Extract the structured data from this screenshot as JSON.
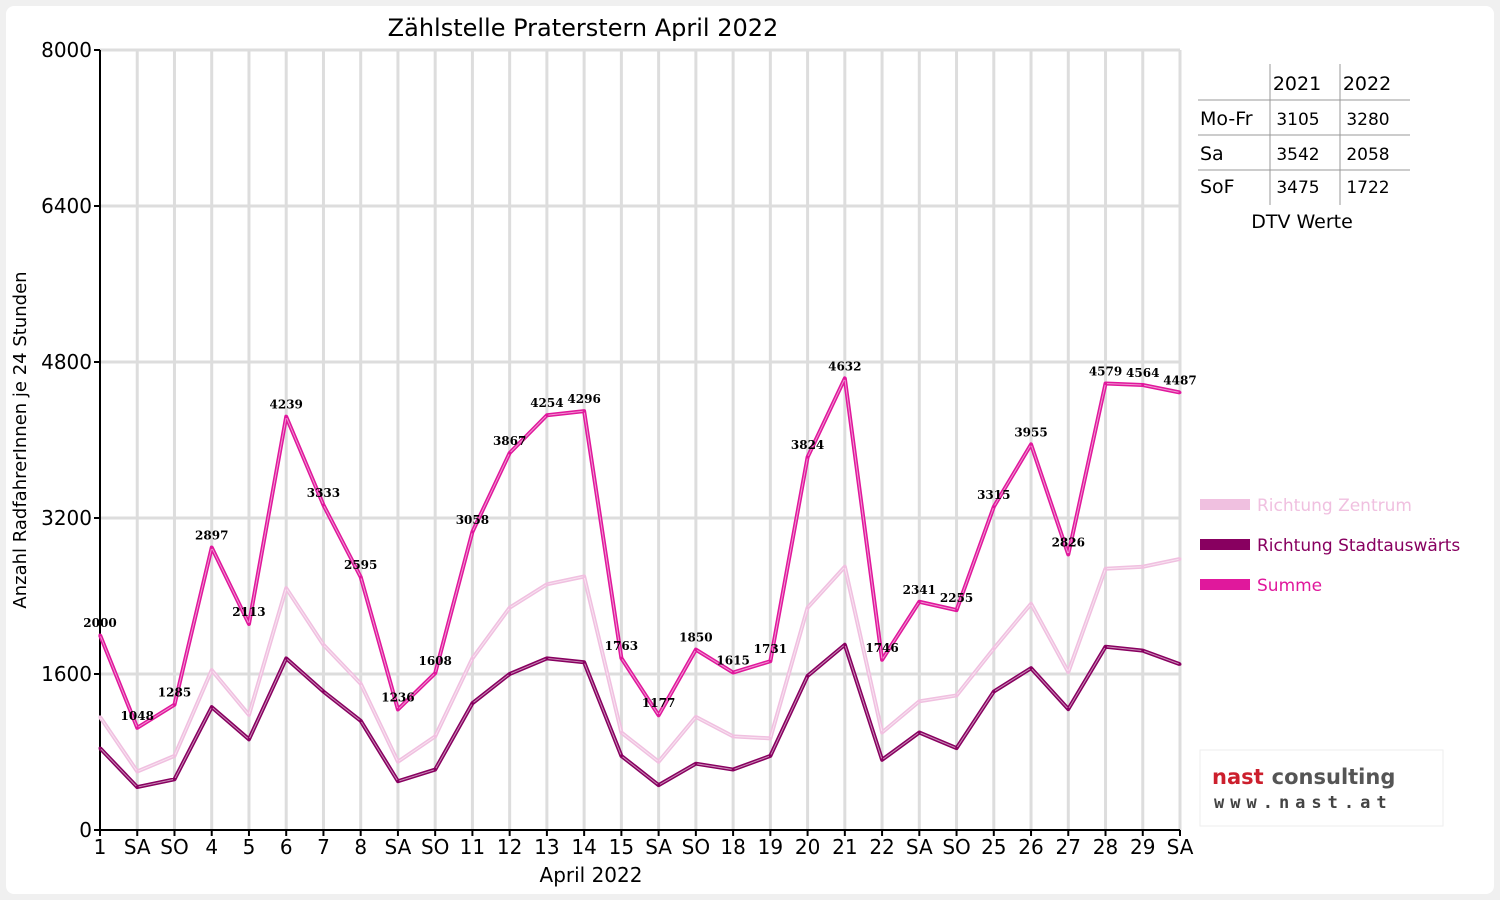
{
  "chart_data": {
    "type": "line",
    "title": "Zählstelle Praterstern April 2022",
    "xlabel": "April 2022",
    "ylabel": "Anzahl RadfahrerInnen je 24 Stunden",
    "ylim": [
      0,
      8000
    ],
    "yticks": [
      "0",
      "1600",
      "3200",
      "4800",
      "6400",
      "8000"
    ],
    "grid": true,
    "legend_position": "right",
    "categories": [
      "1",
      "SA",
      "SO",
      "4",
      "5",
      "6",
      "7",
      "8",
      "SA",
      "SO",
      "11",
      "12",
      "13",
      "14",
      "15",
      "SA",
      "SO",
      "18",
      "19",
      "20",
      "21",
      "22",
      "SA",
      "SO",
      "25",
      "26",
      "27",
      "28",
      "29",
      "SA"
    ],
    "category_colors": [
      "#000000",
      "#000000",
      "#dd0000",
      "#000000",
      "#000000",
      "#000000",
      "#000000",
      "#000000",
      "#000000",
      "#dd0000",
      "#000000",
      "#000000",
      "#000000",
      "#000000",
      "#000000",
      "#000000",
      "#dd0000",
      "#dd0000",
      "#000000",
      "#000000",
      "#000000",
      "#000000",
      "#000000",
      "#dd0000",
      "#000000",
      "#000000",
      "#000000",
      "#000000",
      "#000000",
      "#000000"
    ],
    "series": [
      {
        "name": "Richtung Zentrum",
        "color": "#f0c0e0",
        "values": [
          1160,
          600,
          760,
          1640,
          1180,
          2480,
          1900,
          1500,
          700,
          960,
          1760,
          2280,
          2520,
          2600,
          1000,
          700,
          1160,
          960,
          940,
          2280,
          2700,
          1000,
          1320,
          1380,
          1860,
          2320,
          1620,
          2680,
          2700,
          2780
        ]
      },
      {
        "name": "Richtung Stadtauswärts",
        "color": "#880060",
        "values": [
          840,
          440,
          520,
          1260,
          930,
          1760,
          1420,
          1120,
          500,
          620,
          1300,
          1600,
          1760,
          1720,
          760,
          460,
          680,
          620,
          760,
          1580,
          1900,
          720,
          1000,
          840,
          1420,
          1660,
          1240,
          1880,
          1840,
          1700
        ]
      },
      {
        "name": "Summe",
        "color": "#e0189c",
        "values": [
          2000,
          1048,
          1285,
          2897,
          2113,
          4239,
          3333,
          2595,
          1236,
          1608,
          3058,
          3867,
          4254,
          4296,
          1763,
          1177,
          1850,
          1615,
          1731,
          3824,
          4632,
          1746,
          2341,
          2255,
          3315,
          3955,
          2826,
          4579,
          4564,
          4487
        ]
      }
    ],
    "data_labels": [
      "2000",
      "1048",
      "1285",
      "2897",
      "2113",
      "4239",
      "3333",
      "2595",
      "1236",
      "1608",
      "3058",
      "3867",
      "4254",
      "4296",
      "1763",
      "1177",
      "1850",
      "1615",
      "1731",
      "3824",
      "4632",
      "1746",
      "2341",
      "2255",
      "3315",
      "3955",
      "2826",
      "4579",
      "4564",
      "4487"
    ]
  },
  "table": {
    "headers": [
      "",
      "2021",
      "2022"
    ],
    "rows": [
      {
        "label": "Mo-Fr",
        "v2021": "3105",
        "v2022": "3280"
      },
      {
        "label": "Sa",
        "v2021": "3542",
        "v2022": "2058"
      },
      {
        "label": "SoF",
        "v2021": "3475",
        "v2022": "1722"
      }
    ],
    "caption": "DTV Werte"
  },
  "logo": {
    "line1_part1": "nast",
    "line1_part2": "consulting",
    "line2": "www.nast.at",
    "color_red": "#cc1f2d",
    "color_gray": "#555555"
  }
}
